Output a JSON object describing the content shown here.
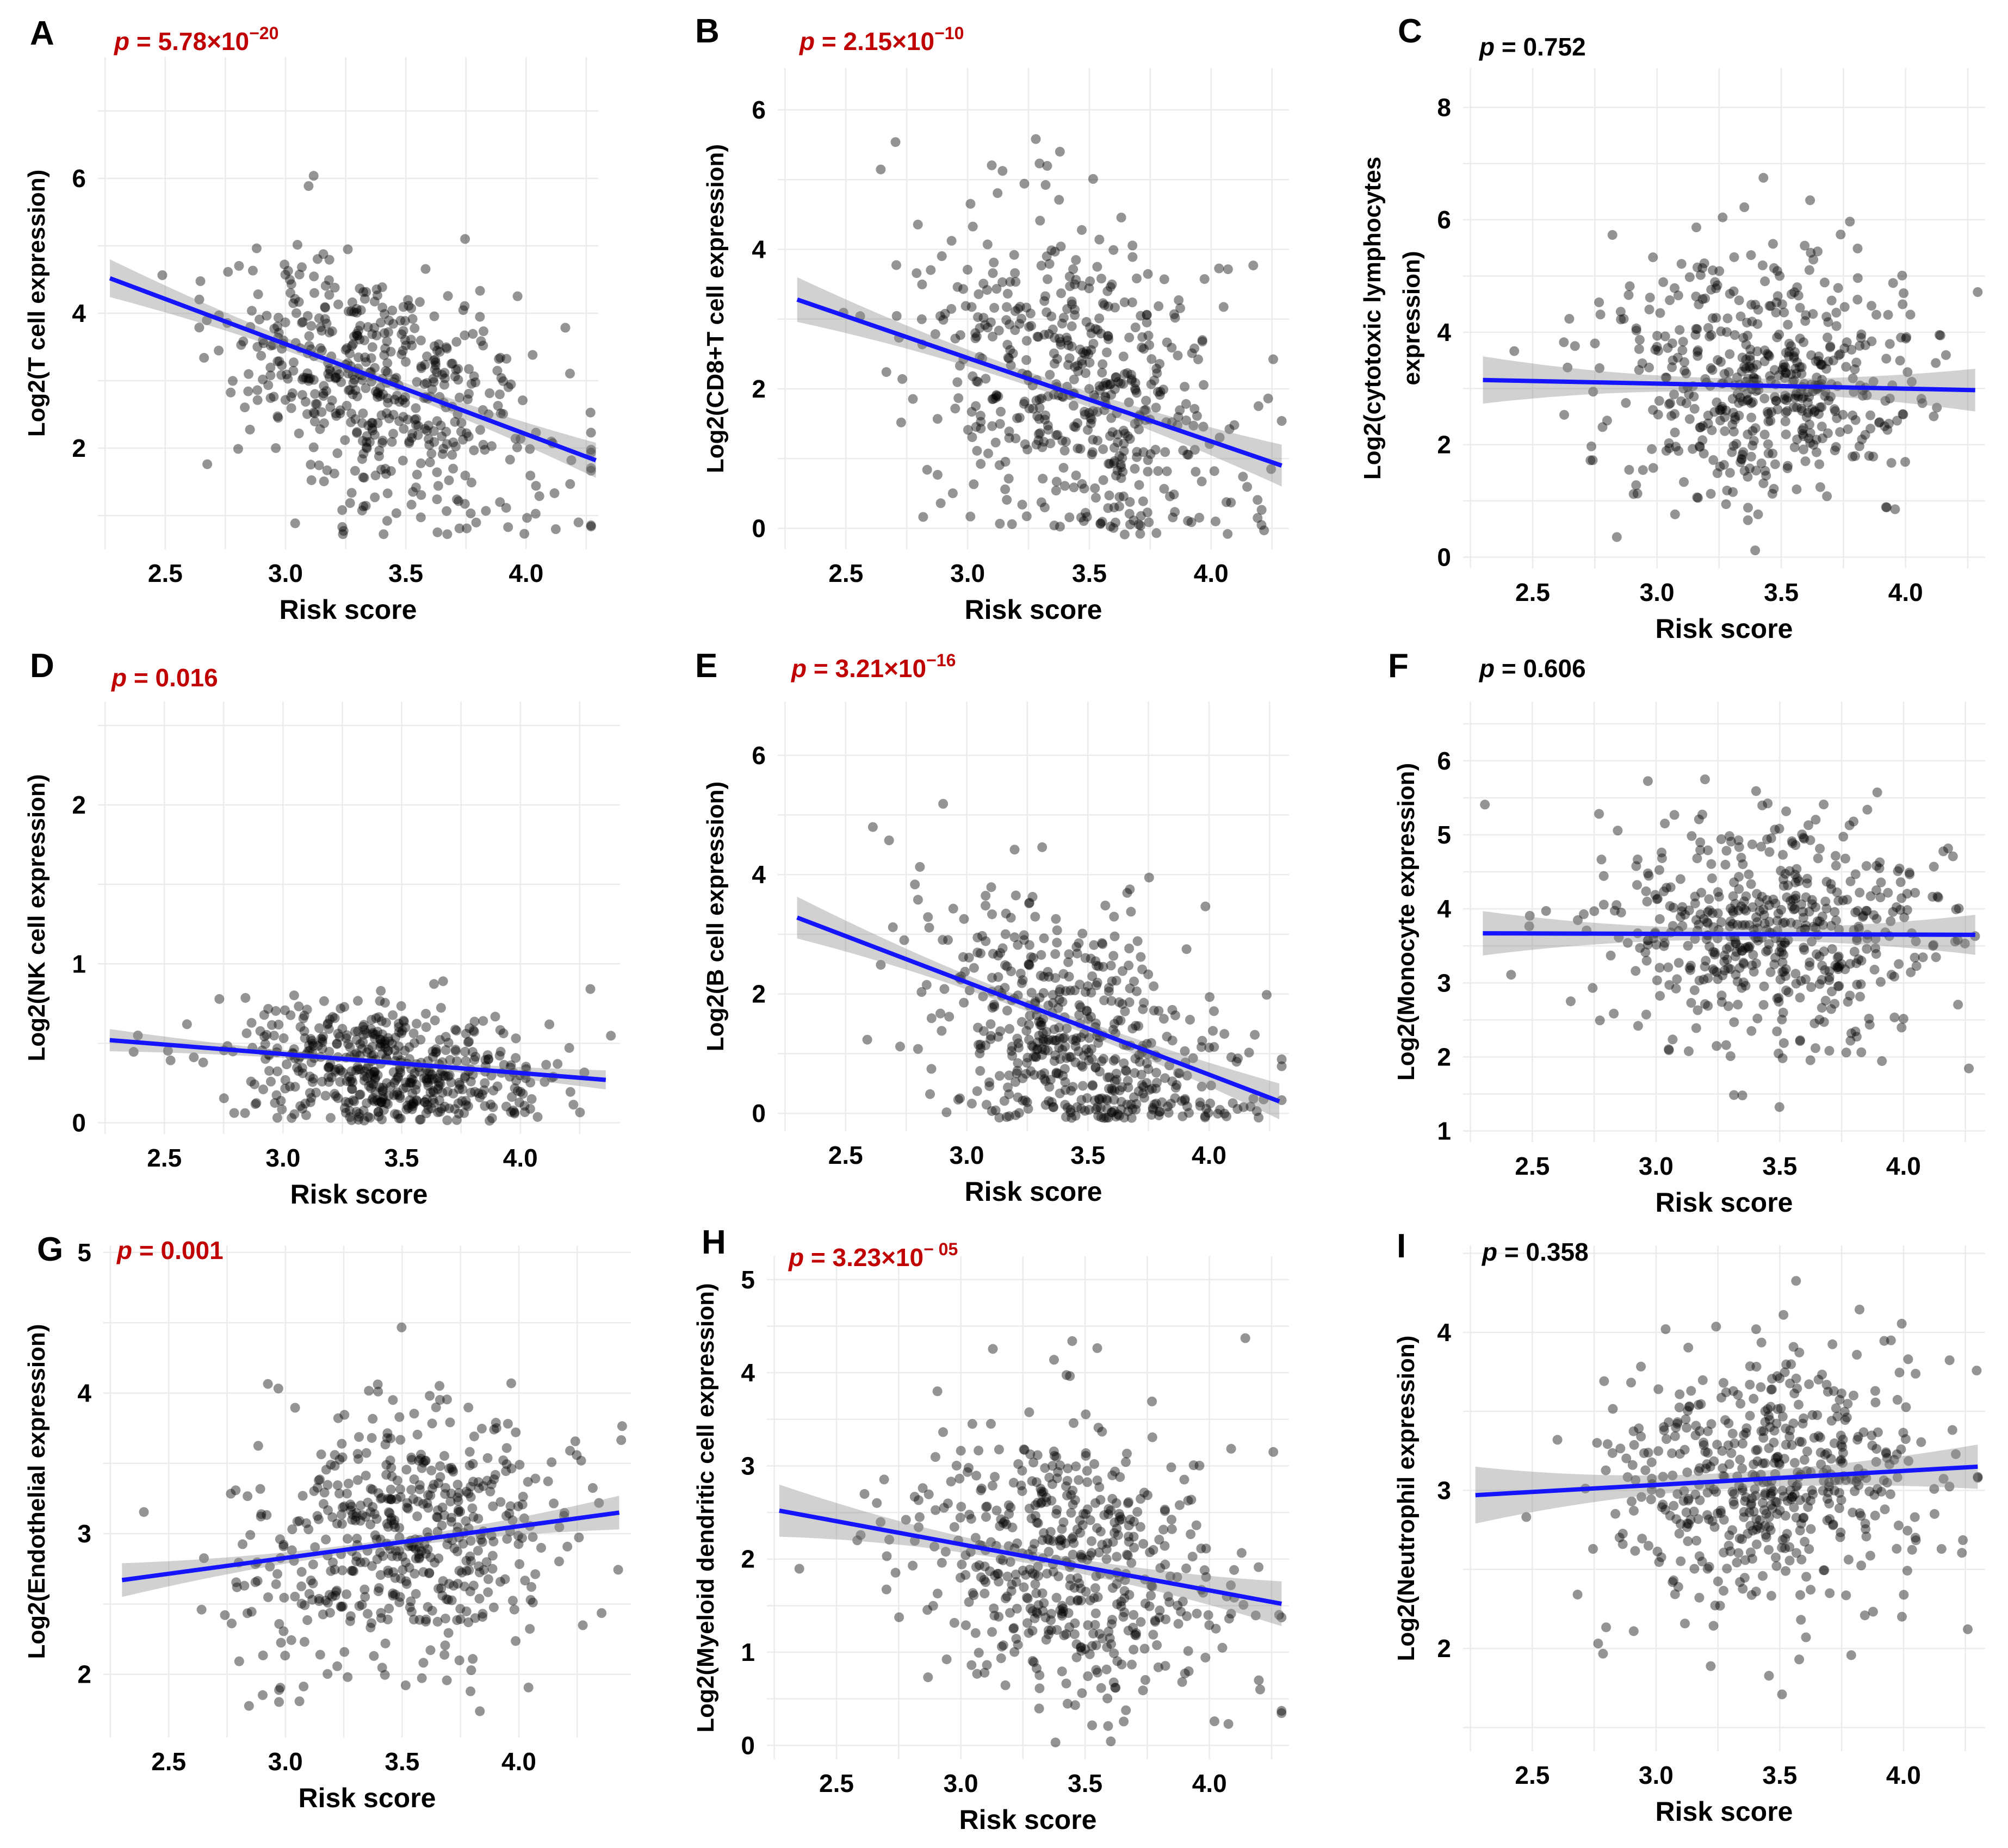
{
  "figure": {
    "colors": {
      "significant": "#c00000",
      "nonsignificant": "#000000",
      "fit": "#1414ff",
      "points": "#000000",
      "band": "#8c8c8c"
    }
  },
  "chart_data": [
    {
      "type": "scatter",
      "panel": "A",
      "p_value": {
        "prefix": "p",
        "text": " = 5.78×10",
        "exp": "−20",
        "significant": true
      },
      "xlabel": "Risk score",
      "ylabel": "Log2(T cell expression)",
      "xlim": [
        2.22,
        4.3
      ],
      "ylim": [
        0.5,
        7.8
      ],
      "xticks": [
        "2.5",
        "3.0",
        "3.5",
        "4.0"
      ],
      "yticks": [
        "2",
        "4",
        "6"
      ],
      "fit": {
        "x": [
          2.27,
          4.29
        ],
        "y": [
          4.52,
          1.82
        ],
        "band": [
          0.28,
          0.08,
          0.26
        ]
      },
      "n_points": 520,
      "x_dist": [
        3.4,
        0.33
      ],
      "y_dist": [
        2.95,
        1.05
      ],
      "seed": 11
    },
    {
      "type": "scatter",
      "panel": "B",
      "p_value": {
        "prefix": "p",
        "text": " = 2.15×10",
        "exp": "−10",
        "significant": true
      },
      "xlabel": "Risk score",
      "ylabel": "Log2(CD8+T cell expression)",
      "xlim": [
        2.22,
        4.32
      ],
      "ylim": [
        -0.3,
        6.6
      ],
      "xticks": [
        "2.5",
        "3.0",
        "3.5",
        "4.0"
      ],
      "yticks": [
        "0",
        "2",
        "4",
        "6"
      ],
      "fit": {
        "x": [
          2.3,
          4.29
        ],
        "y": [
          3.28,
          0.9
        ],
        "band": [
          0.32,
          0.1,
          0.3
        ]
      },
      "n_points": 520,
      "x_dist": [
        3.45,
        0.33
      ],
      "y_dist": [
        2.0,
        1.35
      ],
      "seed": 23
    },
    {
      "type": "scatter",
      "panel": "C",
      "p_value": {
        "prefix": "p",
        "text": " = 0.752",
        "exp": "",
        "significant": false
      },
      "xlabel": "Risk score",
      "ylabel": [
        "Log2(cytotoxic lymphocytes",
        "expression)"
      ],
      "xlim": [
        2.22,
        4.32
      ],
      "ylim": [
        -0.2,
        8.7
      ],
      "xticks": [
        "2.5",
        "3.0",
        "3.5",
        "4.0"
      ],
      "yticks": [
        "0",
        "2",
        "4",
        "6",
        "8"
      ],
      "fit": {
        "x": [
          2.3,
          4.28
        ],
        "y": [
          3.15,
          2.97
        ],
        "band": [
          0.42,
          0.12,
          0.38
        ]
      },
      "n_points": 520,
      "x_dist": [
        3.45,
        0.33
      ],
      "y_dist": [
        3.1,
        1.3
      ],
      "seed": 37
    },
    {
      "type": "scatter",
      "panel": "D",
      "p_value": {
        "prefix": "p",
        "text": " = 0.016",
        "exp": "",
        "significant": true
      },
      "xlabel": "Risk score",
      "ylabel": "Log2(NK cell expression)",
      "xlim": [
        2.22,
        4.42
      ],
      "ylim": [
        -0.07,
        2.65
      ],
      "xticks": [
        "2.5",
        "3.0",
        "3.5",
        "4.0"
      ],
      "yticks": [
        "0",
        "1",
        "2"
      ],
      "fit": {
        "x": [
          2.27,
          4.36
        ],
        "y": [
          0.52,
          0.27
        ],
        "band": [
          0.07,
          0.02,
          0.06
        ]
      },
      "n_points": 520,
      "x_dist": [
        3.45,
        0.33
      ],
      "y_dist": [
        0.32,
        0.25
      ],
      "seed": 41
    },
    {
      "type": "scatter",
      "panel": "E",
      "p_value": {
        "prefix": "p",
        "text": " = 3.21×10",
        "exp": "−16",
        "significant": true
      },
      "xlabel": "Risk score",
      "ylabel": "Log2(B cell expression)",
      "xlim": [
        2.22,
        4.33
      ],
      "ylim": [
        -0.3,
        6.9
      ],
      "xticks": [
        "2.5",
        "3.0",
        "3.5",
        "4.0"
      ],
      "yticks": [
        "0",
        "2",
        "4",
        "6"
      ],
      "fit": {
        "x": [
          2.3,
          4.29
        ],
        "y": [
          3.28,
          0.2
        ],
        "band": [
          0.35,
          0.1,
          0.3
        ]
      },
      "n_points": 520,
      "x_dist": [
        3.45,
        0.33
      ],
      "y_dist": [
        1.3,
        1.25
      ],
      "seed": 53
    },
    {
      "type": "scatter",
      "panel": "F",
      "p_value": {
        "prefix": "p",
        "text": " = 0.606",
        "exp": "",
        "significant": false
      },
      "xlabel": "Risk score",
      "ylabel": "Log2(Monocyte expression)",
      "xlim": [
        2.22,
        4.33
      ],
      "ylim": [
        0.85,
        6.8
      ],
      "xticks": [
        "2.5",
        "3.0",
        "3.5",
        "4.0"
      ],
      "yticks": [
        "1",
        "2",
        "3",
        "4",
        "5",
        "6"
      ],
      "fit": {
        "x": [
          2.3,
          4.29
        ],
        "y": [
          3.67,
          3.65
        ],
        "band": [
          0.3,
          0.08,
          0.27
        ]
      },
      "n_points": 520,
      "x_dist": [
        3.45,
        0.33
      ],
      "y_dist": [
        3.65,
        0.85
      ],
      "seed": 67
    },
    {
      "type": "scatter",
      "panel": "G",
      "p_value": {
        "prefix": "p",
        "text": " = 0.001",
        "exp": "",
        "significant": true
      },
      "xlabel": "Risk score",
      "ylabel": "Log2(Endothelial expression)",
      "xlim": [
        2.22,
        4.48
      ],
      "ylim": [
        1.55,
        5.05
      ],
      "xticks": [
        "2.5",
        "3.0",
        "3.5",
        "4.0"
      ],
      "yticks": [
        "2",
        "3",
        "4",
        "5"
      ],
      "fit": {
        "x": [
          2.3,
          4.43
        ],
        "y": [
          2.67,
          3.15
        ],
        "band": [
          0.12,
          0.03,
          0.12
        ]
      },
      "n_points": 520,
      "x_dist": [
        3.5,
        0.35
      ],
      "y_dist": [
        2.95,
        0.52
      ],
      "seed": 79
    },
    {
      "type": "scatter",
      "panel": "H",
      "p_value": {
        "prefix": "p",
        "text": " = 3.23×10",
        "exp": "− 05",
        "significant": true
      },
      "xlabel": "Risk score",
      "ylabel": "Log2(Myeloid dendritic cell expression)",
      "xlim": [
        2.22,
        4.32
      ],
      "ylim": [
        -0.15,
        5.25
      ],
      "xticks": [
        "2.5",
        "3.0",
        "3.5",
        "4.0"
      ],
      "yticks": [
        "0",
        "1",
        "2",
        "3",
        "4",
        "5"
      ],
      "fit": {
        "x": [
          2.27,
          4.29
        ],
        "y": [
          2.52,
          1.52
        ],
        "band": [
          0.28,
          0.07,
          0.24
        ]
      },
      "n_points": 520,
      "x_dist": [
        3.45,
        0.33
      ],
      "y_dist": [
        1.95,
        0.9
      ],
      "seed": 83
    },
    {
      "type": "scatter",
      "panel": "I",
      "p_value": {
        "prefix": "p",
        "text": " = 0.358",
        "exp": "",
        "significant": false
      },
      "xlabel": "Risk score",
      "ylabel": "Log2(Neutrophil expression)",
      "xlim": [
        2.22,
        4.33
      ],
      "ylim": [
        1.35,
        4.55
      ],
      "xticks": [
        "2.5",
        "3.0",
        "3.5",
        "4.0"
      ],
      "yticks": [
        "2",
        "3",
        "4"
      ],
      "fit": {
        "x": [
          2.27,
          4.3
        ],
        "y": [
          2.97,
          3.15
        ],
        "band": [
          0.18,
          0.05,
          0.14
        ]
      },
      "n_points": 520,
      "x_dist": [
        3.45,
        0.33
      ],
      "y_dist": [
        3.05,
        0.5
      ],
      "seed": 97
    }
  ]
}
